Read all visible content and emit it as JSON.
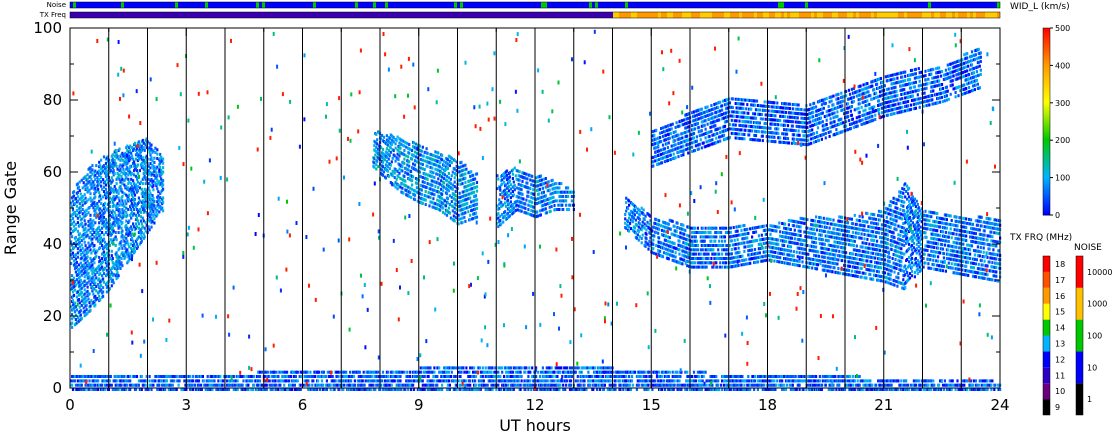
{
  "top_strips": {
    "noise_label": "Noise",
    "txfreq_label": "TX Freq"
  },
  "chart_data": {
    "type": "heatmap",
    "title": "",
    "xlabel": "UT hours",
    "ylabel": "Range Gate",
    "xlim": [
      0,
      24
    ],
    "ylim": [
      0,
      100
    ],
    "x_ticks": [
      "0",
      "3",
      "6",
      "9",
      "12",
      "15",
      "18",
      "21",
      "24"
    ],
    "y_ticks": [
      "0",
      "20",
      "40",
      "60",
      "80",
      "100"
    ],
    "vertical_hour_lines": true,
    "parameter": "WID_L (km/s)",
    "colorbar": {
      "label": "WID_L (km/s)",
      "ticks": [
        "0",
        "100",
        "200",
        "300",
        "400",
        "500"
      ],
      "range": [
        0,
        500
      ]
    },
    "txfreq_scale": {
      "label": "TX FRQ (MHz)",
      "ticks": [
        "9",
        "10",
        "11",
        "12",
        "13",
        "14",
        "15",
        "16",
        "17",
        "18"
      ],
      "colors": [
        "#000000",
        "#6a0080",
        "#2a00c8",
        "#0000ff",
        "#00b4ff",
        "#00c800",
        "#ffff00",
        "#ff9900",
        "#ff5000",
        "#ff0000"
      ]
    },
    "noise_scale": {
      "label": "NOISE",
      "ticks": [
        "1",
        "10",
        "100",
        "1000",
        "10000"
      ],
      "colors": [
        "#000000",
        "#0000ff",
        "#00c800",
        "#ffc000",
        "#ff0000"
      ]
    },
    "series": [
      {
        "x": [
          0.0,
          0.5,
          1.0,
          1.5,
          2.0,
          2.4
        ],
        "y_low": [
          17,
          22,
          28,
          36,
          44,
          50
        ],
        "y_high": [
          55,
          62,
          66,
          68,
          70,
          64
        ],
        "level": 60
      },
      {
        "x": [
          7.8,
          8.5,
          9.0,
          9.5,
          10.0,
          10.5
        ],
        "y_low": [
          62,
          55,
          52,
          50,
          46,
          48
        ],
        "y_high": [
          72,
          70,
          68,
          66,
          64,
          60
        ],
        "level": 70
      },
      {
        "x": [
          11.0,
          11.5,
          12.0,
          12.5,
          13.0
        ],
        "y_low": [
          45,
          50,
          48,
          50,
          50
        ],
        "y_high": [
          60,
          62,
          60,
          58,
          56
        ],
        "level": 60
      },
      {
        "x": [
          14.3,
          15.0,
          16.0,
          17.0,
          18.0,
          19.0,
          20.0,
          21.0,
          21.5,
          22.0,
          23.0,
          24.0
        ],
        "y_low": [
          45,
          38,
          34,
          34,
          36,
          34,
          32,
          30,
          28,
          34,
          32,
          30
        ],
        "y_high": [
          54,
          48,
          46,
          46,
          46,
          48,
          48,
          50,
          58,
          50,
          48,
          48
        ],
        "level": 50
      },
      {
        "x": [
          15.0,
          17.0,
          19.0,
          21.0,
          22.5,
          23.5
        ],
        "y_low": [
          62,
          70,
          68,
          76,
          80,
          84
        ],
        "y_high": [
          72,
          82,
          80,
          88,
          90,
          96
        ],
        "level": 40
      },
      {
        "x": [
          0.0,
          6.0,
          12.0,
          18.0,
          24.0
        ],
        "y_low": [
          0,
          0,
          0,
          0,
          0
        ],
        "y_high": [
          4,
          5,
          7,
          4,
          3
        ],
        "level": 40
      }
    ]
  }
}
